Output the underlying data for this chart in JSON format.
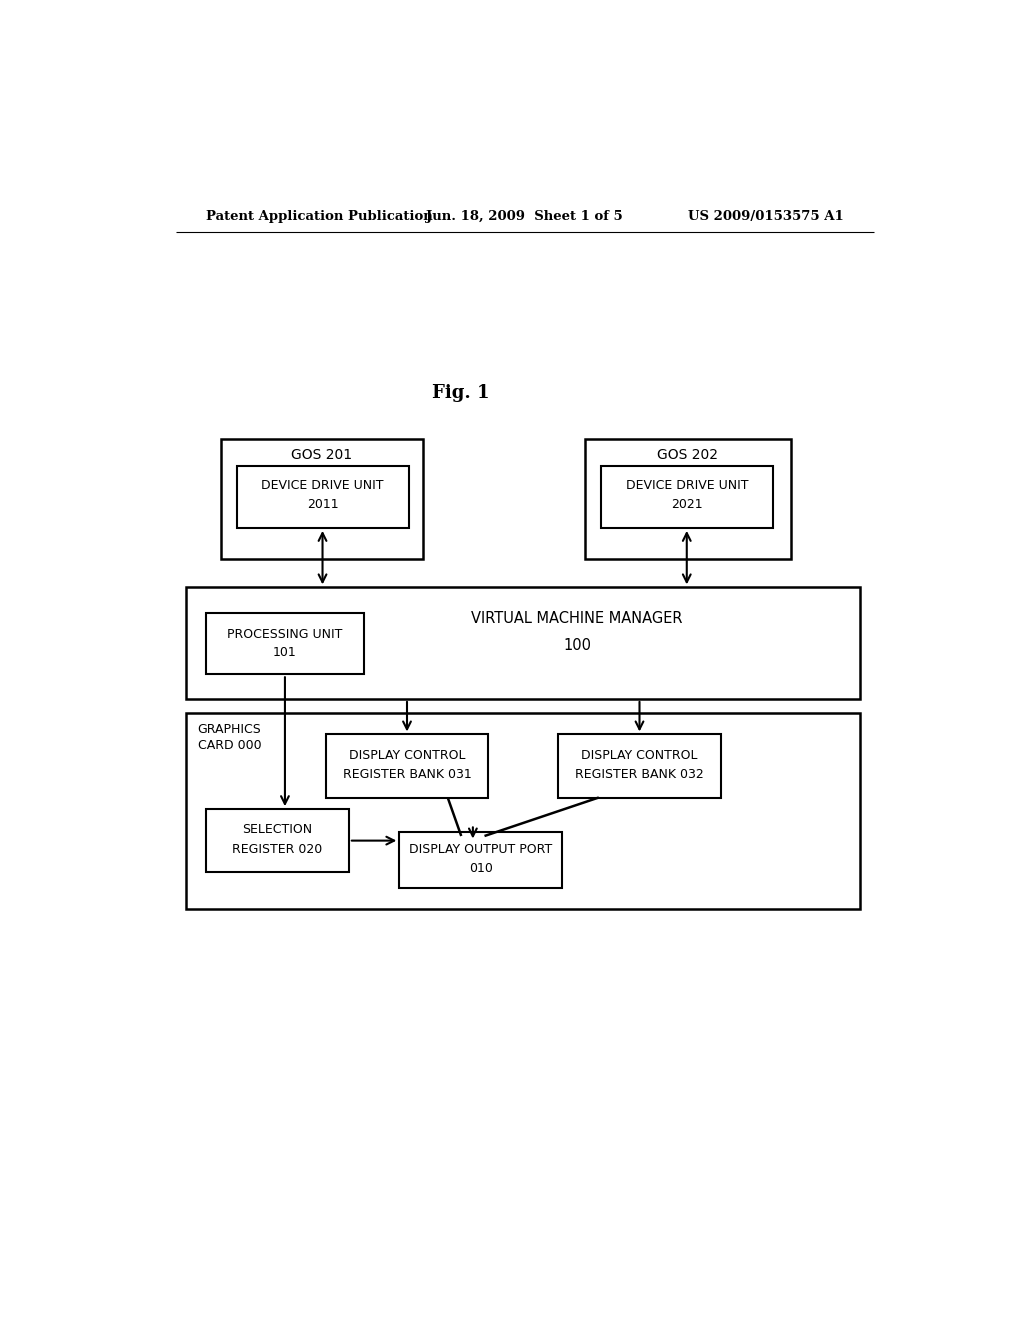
{
  "background_color": "#ffffff",
  "header_left": "Patent Application Publication",
  "header_center": "Jun. 18, 2009  Sheet 1 of 5",
  "header_right": "US 2009/0153575 A1",
  "fig_label": "Fig. 1"
}
